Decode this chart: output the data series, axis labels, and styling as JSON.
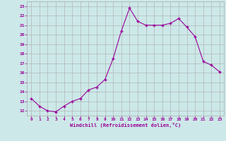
{
  "x": [
    0,
    1,
    2,
    3,
    4,
    5,
    6,
    7,
    8,
    9,
    10,
    11,
    12,
    13,
    14,
    15,
    16,
    17,
    18,
    19,
    20,
    21,
    22,
    23
  ],
  "y": [
    13.3,
    12.5,
    12.0,
    11.9,
    12.5,
    13.0,
    13.3,
    14.2,
    14.5,
    15.3,
    17.5,
    20.4,
    22.8,
    21.4,
    21.0,
    21.0,
    21.0,
    21.2,
    21.7,
    20.8,
    19.8,
    17.2,
    16.8,
    16.1
  ],
  "xlim": [
    -0.5,
    23.5
  ],
  "ylim": [
    11.5,
    23.5
  ],
  "yticks": [
    12,
    13,
    14,
    15,
    16,
    17,
    18,
    19,
    20,
    21,
    22,
    23
  ],
  "xticks": [
    0,
    1,
    2,
    3,
    4,
    5,
    6,
    7,
    8,
    9,
    10,
    11,
    12,
    13,
    14,
    15,
    16,
    17,
    18,
    19,
    20,
    21,
    22,
    23
  ],
  "xlabel": "Windchill (Refroidissement éolien,°C)",
  "line_color": "#990099",
  "marker": "+",
  "bg_color": "#cce8e8",
  "grid_color": "#aaaaaa",
  "tick_label_color": "#990099",
  "label_color": "#990099"
}
